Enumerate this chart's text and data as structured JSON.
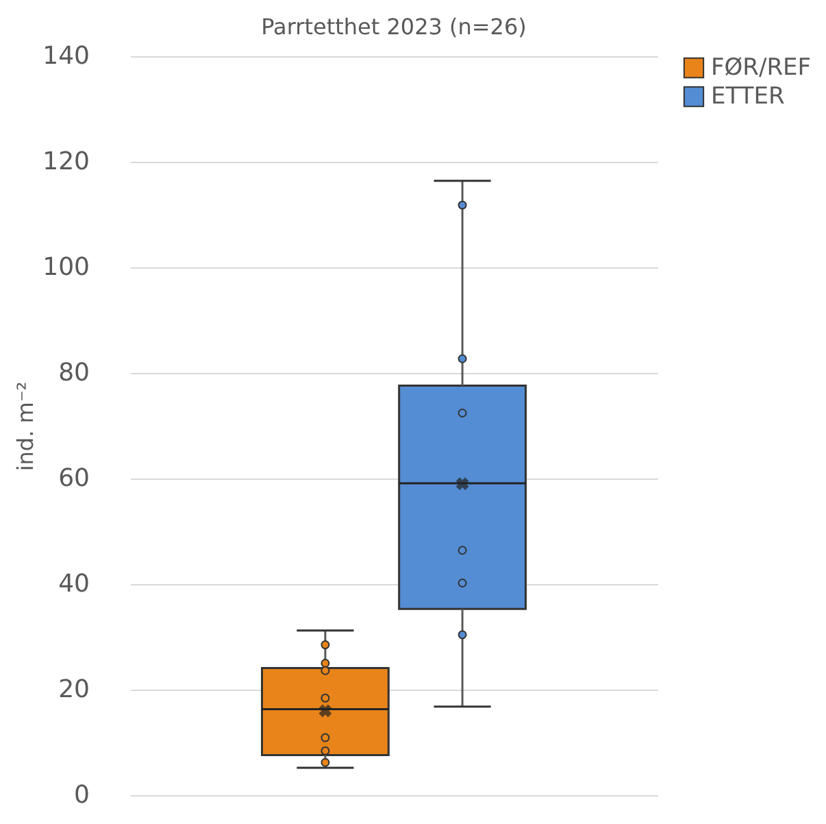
{
  "chart_data": {
    "type": "box",
    "title": "Parrtetthet 2023 (n=26)",
    "ylabel": "ind. m⁻²",
    "categories": [
      null
    ],
    "series": [
      {
        "name": "FØR/REF",
        "color": "#e8841a",
        "boxes": [
          {
            "low": 5.2,
            "q1": 7.6,
            "median": 16.3,
            "q3": 24.1,
            "high": 31.2,
            "mean": 16
          }
        ]
      },
      {
        "name": "ETTER",
        "color": "#548dd4",
        "boxes": [
          {
            "low": 16.8,
            "q1": 35.3,
            "median": 59.1,
            "q3": 77.6,
            "high": 116.4,
            "mean": 59
          }
        ]
      },
      {
        "color": "#e8841a",
        "type": "scatter",
        "x": [
          null,
          null,
          null,
          null,
          null,
          null,
          null
        ],
        "values": [
          28.5,
          25,
          23.6,
          18.4,
          10.9,
          8.4,
          6.2
        ]
      },
      {
        "color": "#548dd4",
        "type": "scatter",
        "x": [
          null,
          null,
          null,
          null,
          null,
          null
        ],
        "values": [
          111.8,
          82.7,
          72.4,
          46.4,
          40.2,
          30.4
        ]
      }
    ],
    "ylim": [
      0,
      140
    ],
    "yticks": [
      0,
      20,
      40,
      60,
      80,
      100,
      120,
      140
    ],
    "grid": "y",
    "legend": "right",
    "marker": "circle",
    "tick_labels": "y"
  }
}
